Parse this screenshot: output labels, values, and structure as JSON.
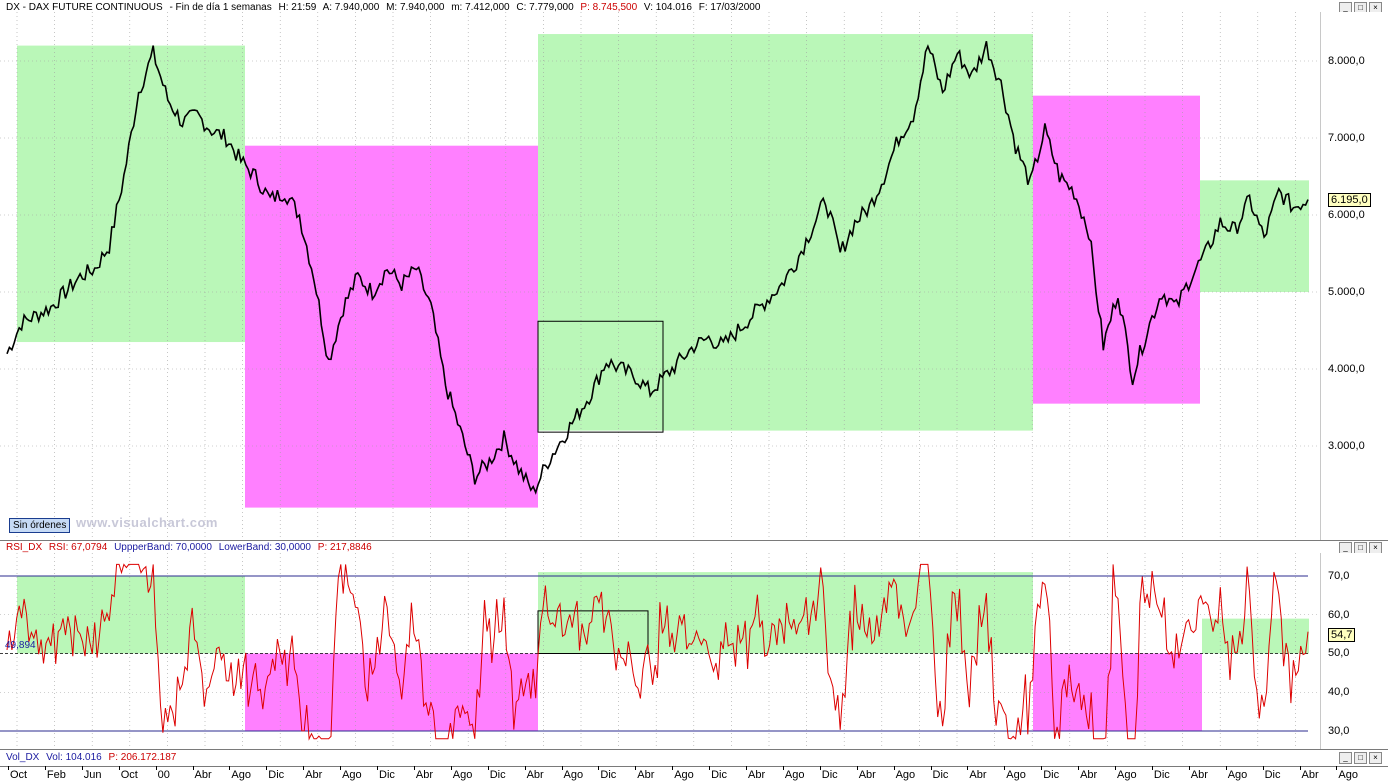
{
  "price_pane": {
    "header": {
      "symbol": "DX - DAX FUTURE CONTINUOUS",
      "timeframe": "- Fin de día 1 semanas",
      "h": "H: 21:59",
      "a": "A: 7.940,000",
      "max": "M: 7.940,000",
      "min": "m: 7.412,000",
      "close": "C: 7.779,000",
      "p": "P: 8.745,500",
      "vol": "V: 104.016",
      "date": "F: 17/03/2000"
    },
    "y_ticks": [
      "8.000,0",
      "7.000,0",
      "6.000,0",
      "5.000,0",
      "4.000,0",
      "3.000,0"
    ],
    "last_value": "6.195,0",
    "sin_ordenes": "Sin órdenes",
    "watermark": "www.visualchart.com"
  },
  "rsi_pane": {
    "header": {
      "name": "RSI_DX",
      "rsi": "RSI: 67,0794",
      "upper": "UppperBand: 70,0000",
      "lower": "LowerBand: 30,0000",
      "p": "P: 217,8846"
    },
    "y_ticks": [
      "70,0",
      "60,0",
      "50,0",
      "40,0",
      "30,0"
    ],
    "left_label": "49,894",
    "last_value": "54,7"
  },
  "vol_pane": {
    "header": {
      "name": "Vol_DX",
      "vol": "Vol: 104.016",
      "p": "P: 206.172.187"
    }
  },
  "window_buttons": [
    "_",
    "□",
    "×"
  ],
  "x_axis_labels": [
    "Oct",
    "Feb",
    "Jun",
    "Oct",
    "00",
    "Abr",
    "Ago",
    "Dic",
    "Abr",
    "Ago",
    "Dic",
    "Abr",
    "Ago",
    "Dic",
    "Abr",
    "Ago",
    "Dic",
    "Abr",
    "Ago",
    "Dic",
    "Abr",
    "Ago",
    "Dic",
    "Abr",
    "Ago",
    "Dic",
    "Abr",
    "Ago",
    "Dic",
    "Abr",
    "Ago",
    "Dic",
    "Abr",
    "Ago",
    "Dic",
    "Abr",
    "Ago"
  ],
  "colors": {
    "bull_zone": "#baf7b8",
    "bear_zone": "#ff80ff",
    "price_line": "#000000",
    "rsi_line": "#dd0000",
    "band_line": "#2b2b8f"
  },
  "chart_data": {
    "type": "line",
    "title": "DX - DAX FUTURE CONTINUOUS",
    "y_unit": "index points",
    "ylim": [
      2000,
      8600
    ],
    "price_series": {
      "name": "DX",
      "values": [
        4200,
        4600,
        4700,
        4800,
        5000,
        5200,
        5300,
        5600,
        6500,
        7600,
        8100,
        7500,
        7200,
        7300,
        7100,
        7000,
        6700,
        6500,
        6200,
        6300,
        6000,
        5200,
        4100,
        4800,
        5200,
        5000,
        5300,
        5100,
        5300,
        4800,
        3800,
        3200,
        2600,
        2800,
        3100,
        2700,
        2400,
        2800,
        3100,
        3400,
        3700,
        4100,
        4000,
        3900,
        3700,
        3900,
        4100,
        4300,
        4400,
        4300,
        4500,
        4700,
        4900,
        5100,
        5400,
        5800,
        6200,
        5500,
        5900,
        6100,
        6500,
        7000,
        7300,
        8200,
        7600,
        8100,
        7800,
        8200,
        7700,
        6900,
        6400,
        7100,
        6500,
        6300,
        5800,
        4300,
        5000,
        3900,
        4500,
        5000,
        4800,
        5200,
        5500,
        5900,
        5800,
        6200,
        5700,
        6300,
        6100,
        6200
      ]
    },
    "rsi_series": {
      "name": "RSI_DX",
      "upper_band": 70,
      "lower_band": 30,
      "mid": 50,
      "ylim": [
        25,
        75
      ]
    },
    "zones": [
      {
        "type": "bull",
        "price_range": [
          4350,
          8200
        ]
      },
      {
        "type": "bear",
        "price_range": [
          2200,
          6900
        ]
      },
      {
        "type": "bull",
        "price_range": [
          3200,
          8350
        ]
      },
      {
        "type": "bear",
        "price_range": [
          3550,
          7550
        ]
      },
      {
        "type": "bull",
        "price_range": [
          5000,
          6450
        ]
      }
    ]
  }
}
